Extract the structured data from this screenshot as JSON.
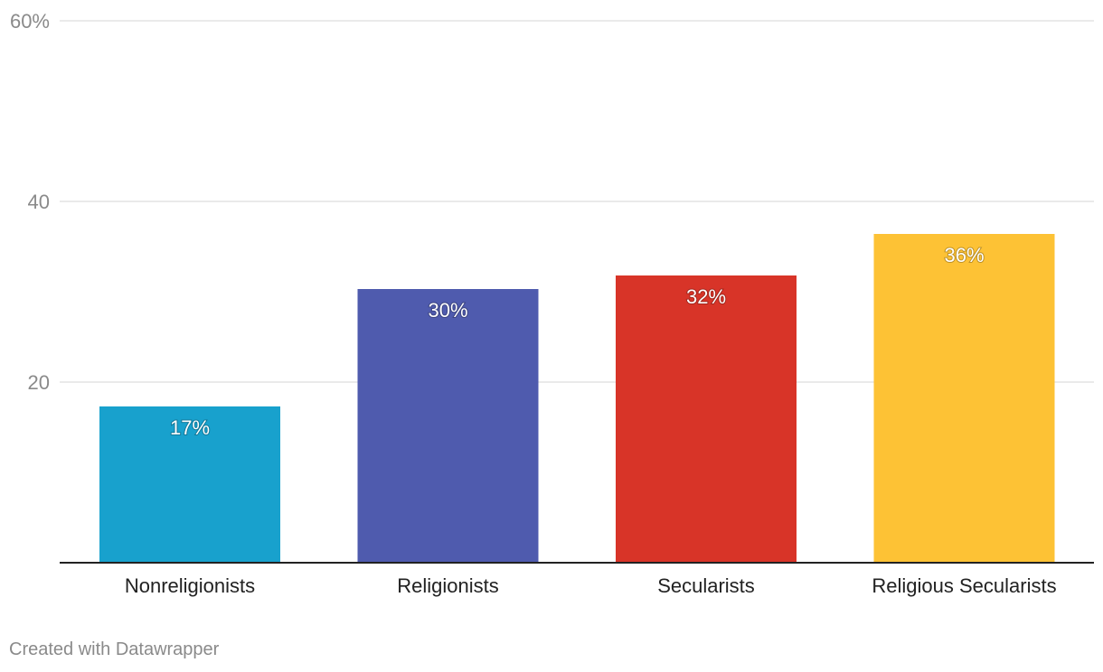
{
  "chart_data": {
    "type": "bar",
    "categories": [
      "Nonreligionists",
      "Religionists",
      "Secularists",
      "Religious Secularists"
    ],
    "values": [
      17.3,
      30.3,
      31.8,
      36.4
    ],
    "value_labels": [
      "17%",
      "30%",
      "32%",
      "36%"
    ],
    "colors": [
      "#18a1cd",
      "#4f5bae",
      "#d83428",
      "#fdc235"
    ],
    "ylim": [
      0,
      60
    ],
    "yticks": [
      20,
      40,
      60
    ],
    "ytick_labels": [
      "20",
      "40",
      "60%"
    ],
    "grid": true
  },
  "footer": {
    "credit": "Created with Datawrapper"
  }
}
